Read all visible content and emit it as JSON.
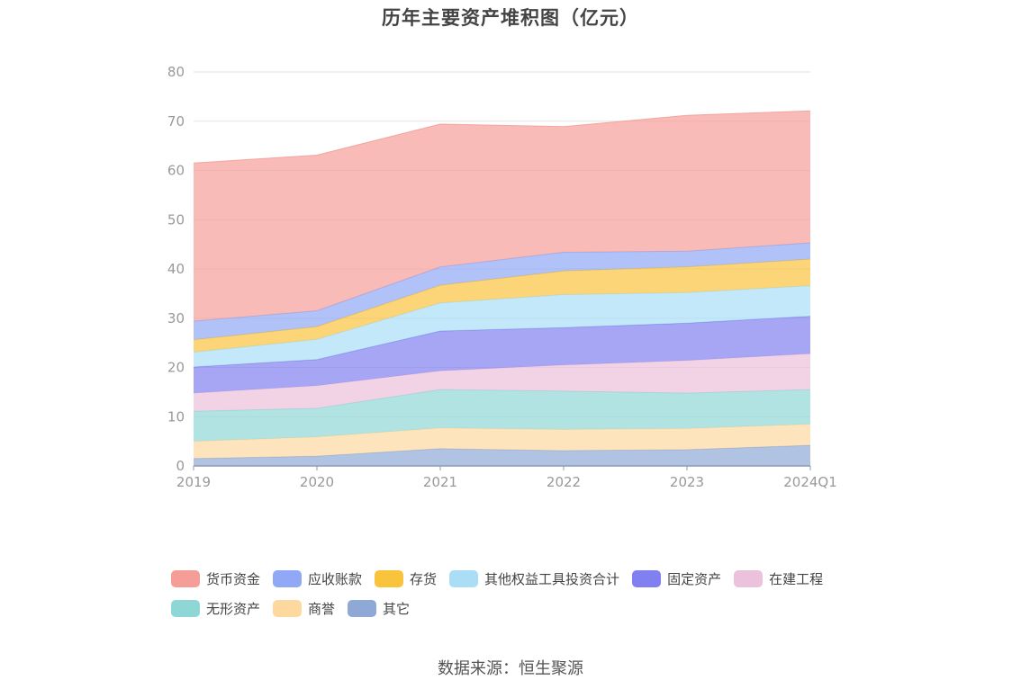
{
  "chart_data": {
    "type": "area",
    "stacked": true,
    "title": "历年主要资产堆积图（亿元）",
    "x": [
      "2019",
      "2020",
      "2021",
      "2022",
      "2023",
      "2024Q1"
    ],
    "ylim": [
      0,
      80
    ],
    "yticks": [
      0,
      10,
      20,
      30,
      40,
      50,
      60,
      70,
      80
    ],
    "grid": true,
    "legend_position": "bottom",
    "series": [
      {
        "name": "其它",
        "color": "#8fa9d6",
        "values": [
          1.5,
          2.0,
          3.5,
          3.1,
          3.3,
          4.2
        ]
      },
      {
        "name": "商誉",
        "color": "#fdd9a0",
        "values": [
          3.5,
          3.9,
          4.2,
          4.3,
          4.3,
          4.3
        ]
      },
      {
        "name": "无形资产",
        "color": "#8fd7d6",
        "values": [
          6.1,
          5.8,
          7.8,
          7.8,
          7.2,
          7.0
        ]
      },
      {
        "name": "在建工程",
        "color": "#ecc1dc",
        "values": [
          3.7,
          4.6,
          3.8,
          5.3,
          6.6,
          7.3
        ]
      },
      {
        "name": "固定资产",
        "color": "#8080f0",
        "values": [
          5.3,
          5.3,
          8.1,
          7.6,
          7.6,
          7.6
        ]
      },
      {
        "name": "其他权益工具投资合计",
        "color": "#a9def6",
        "values": [
          3.0,
          4.1,
          5.7,
          6.7,
          6.2,
          6.2
        ]
      },
      {
        "name": "存货",
        "color": "#f9c33d",
        "values": [
          2.5,
          2.6,
          3.6,
          4.8,
          5.2,
          5.4
        ]
      },
      {
        "name": "应收账款",
        "color": "#90a8f5",
        "values": [
          3.8,
          3.2,
          3.7,
          3.8,
          3.2,
          3.3
        ]
      },
      {
        "name": "货币资金",
        "color": "#f59e98",
        "values": [
          32.1,
          31.6,
          29.0,
          25.5,
          27.6,
          26.8
        ]
      }
    ]
  },
  "legend": {
    "货币资金": "货币资金",
    "应收账款": "应收账款",
    "存货": "存货",
    "其他权益工具投资合计": "其他权益工具投资合计",
    "固定资产": "固定资产",
    "在建工程": "在建工程",
    "无形资产": "无形资产",
    "商誉": "商誉",
    "其它": "其它"
  },
  "source": "数据来源：恒生聚源"
}
